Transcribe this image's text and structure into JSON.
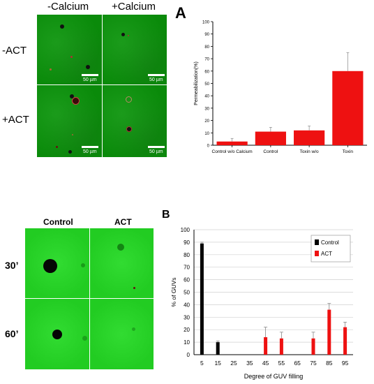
{
  "panelA": {
    "letter": "A",
    "col_labels": [
      "-Calcium",
      "+Calcium"
    ],
    "row_labels": [
      "-ACT",
      "+ACT"
    ],
    "scale_labels": [
      "50 µm",
      "50 µm",
      "50 µm",
      "50 µm"
    ]
  },
  "panelB": {
    "letter": "B",
    "col_labels": [
      "Control",
      "ACT"
    ],
    "row_labels": [
      "30’",
      "60’"
    ]
  },
  "colors": {
    "bar_red": "#ee1111",
    "bar_black": "#000000",
    "grid": "#d0d0d0"
  },
  "chart_data": [
    {
      "type": "bar",
      "title": "",
      "xlabel": "",
      "ylabel": "Permeabilization(%)",
      "categories": [
        "Control w/o Calcium",
        "Control",
        "Toxin w/o",
        "Toxin"
      ],
      "values": [
        3,
        11,
        12,
        60
      ],
      "errors": [
        2.5,
        3.5,
        3.5,
        15
      ],
      "ylim": [
        0,
        100
      ],
      "yticks": [
        0,
        10,
        20,
        30,
        40,
        50,
        60,
        70,
        80,
        90,
        100
      ],
      "grid": false
    },
    {
      "type": "bar",
      "title": "",
      "xlabel": "Degree of GUV filling",
      "ylabel": "% of GUVs",
      "categories": [
        "5",
        "15",
        "25",
        "35",
        "45",
        "55",
        "65",
        "75",
        "85",
        "95"
      ],
      "ylim": [
        0,
        100
      ],
      "yticks": [
        0,
        10,
        20,
        30,
        40,
        50,
        60,
        70,
        80,
        90,
        100
      ],
      "grid": true,
      "legend_position": "top-right",
      "series": [
        {
          "name": "Control",
          "color": "#000000",
          "values": [
            89,
            10,
            0,
            0,
            0,
            0,
            0,
            0,
            0,
            0
          ],
          "errors": [
            1,
            1,
            0,
            0,
            0,
            0,
            0,
            0,
            0,
            0
          ]
        },
        {
          "name": "ACT",
          "color": "#ee1111",
          "values": [
            0,
            0,
            0,
            0,
            14,
            13,
            0,
            13,
            36,
            22
          ],
          "errors": [
            0,
            0,
            0,
            0,
            8,
            5,
            0,
            5,
            5,
            4
          ]
        }
      ]
    }
  ]
}
